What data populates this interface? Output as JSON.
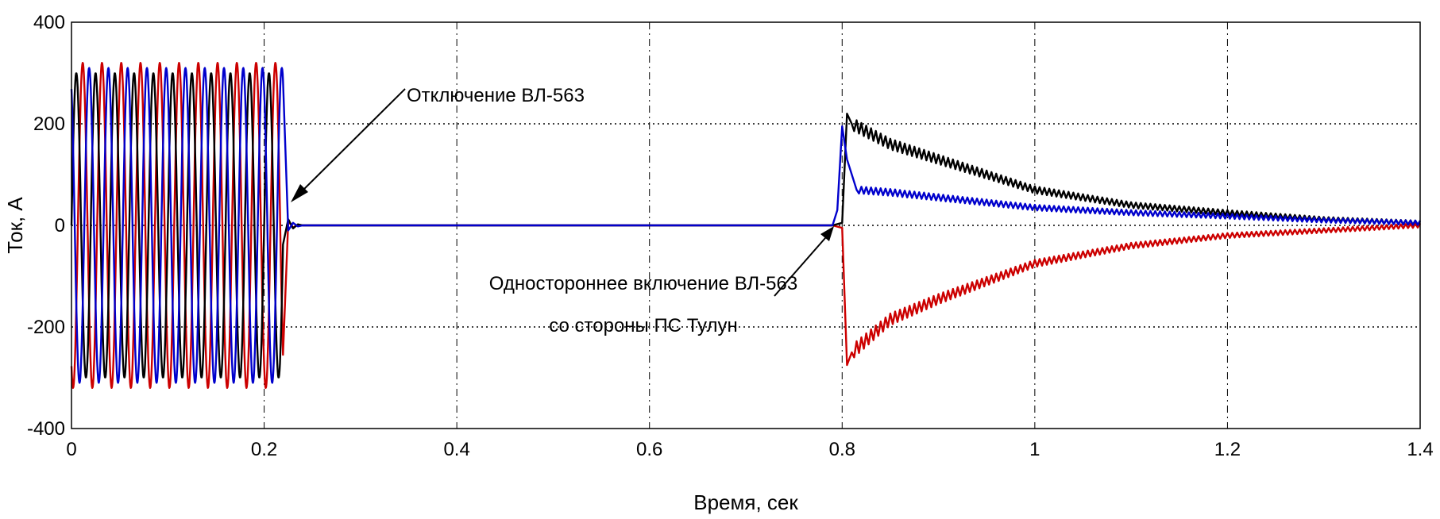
{
  "chart_data": {
    "type": "line",
    "title": "",
    "xlabel": "Время, сек",
    "ylabel": "Ток, А",
    "xlim": [
      0,
      1.4
    ],
    "ylim": [
      -400,
      400
    ],
    "x_ticks": [
      0,
      0.2,
      0.4,
      0.6,
      0.8,
      1,
      1.2,
      1.4
    ],
    "y_ticks": [
      -400,
      -200,
      0,
      200,
      400
    ],
    "grid": true,
    "legend": "none",
    "series": [
      {
        "color": "#000000",
        "x": [
          0,
          0.005,
          0.22,
          0.225,
          0.23,
          0.235,
          0.24,
          0.79,
          0.8,
          0.805,
          0.81,
          0.85,
          0.9,
          1.0,
          1.1,
          1.2,
          1.3,
          1.4
        ],
        "y": [
          0,
          300,
          300,
          12,
          -6,
          2,
          0,
          0,
          5,
          220,
          200,
          160,
          130,
          70,
          40,
          25,
          12,
          5
        ]
      },
      {
        "color": "#0000cc",
        "x": [
          0,
          0.005,
          0.22,
          0.225,
          0.23,
          0.235,
          0.24,
          0.79,
          0.795,
          0.8,
          0.805,
          0.815,
          0.85,
          0.9,
          1.0,
          1.1,
          1.2,
          1.3,
          1.4
        ],
        "y": [
          0,
          -310,
          -310,
          -10,
          5,
          -2,
          0,
          0,
          30,
          195,
          130,
          70,
          65,
          55,
          35,
          25,
          18,
          10,
          5
        ]
      },
      {
        "color": "#cc0000",
        "x": [
          0,
          0.005,
          0.22,
          0.225,
          0.23,
          0.235,
          0.24,
          0.79,
          0.8,
          0.805,
          0.81,
          0.85,
          0.9,
          1.0,
          1.1,
          1.2,
          1.3,
          1.4
        ],
        "y": [
          0,
          320,
          320,
          8,
          -4,
          1,
          0,
          0,
          -5,
          -275,
          -250,
          -185,
          -145,
          -75,
          -40,
          -20,
          -10,
          0
        ]
      }
    ],
    "oscillation": {
      "x_end": 0.22,
      "period": 0.02,
      "amplitudes": [
        300,
        310,
        320
      ]
    },
    "annotations": [
      {
        "text": "Отключение ВЛ-563",
        "target": [
          0.225,
          20
        ]
      },
      {
        "text": "Одностороннее включение ВЛ-563",
        "text2": "со стороны ПС Тулун",
        "target": [
          0.8,
          0
        ]
      }
    ]
  }
}
